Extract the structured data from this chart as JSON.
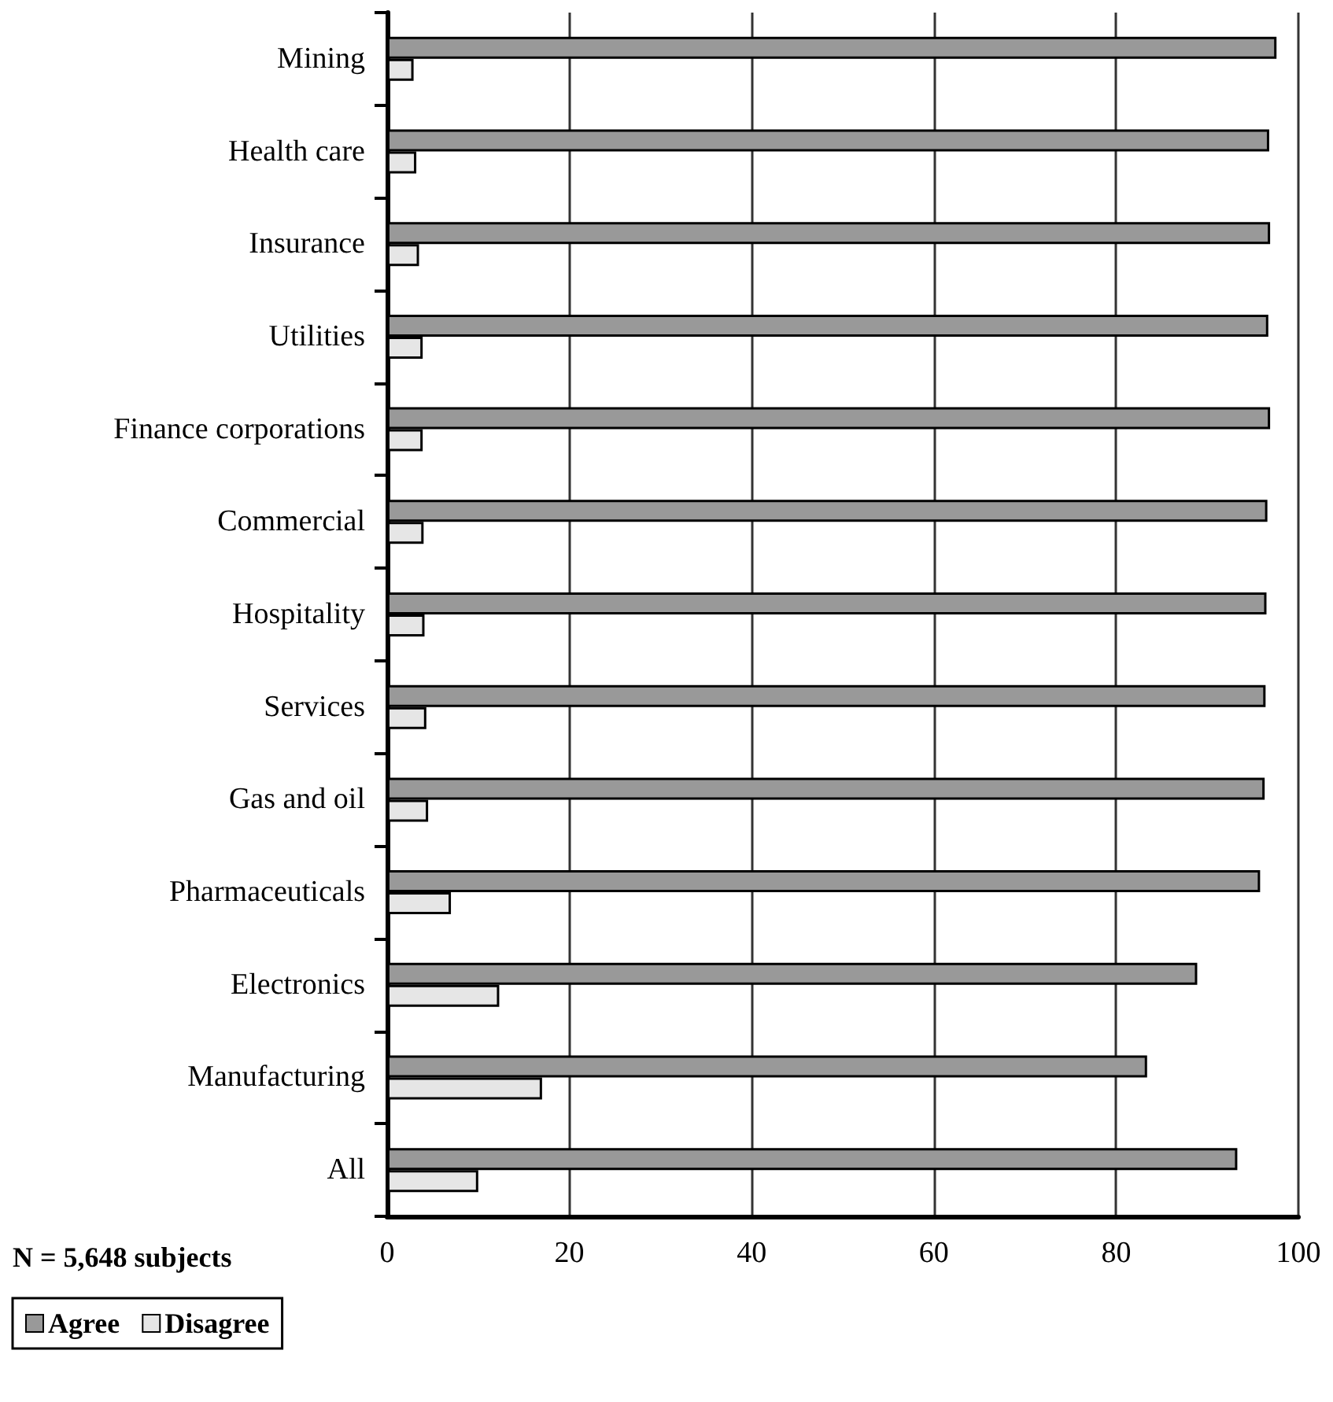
{
  "chart_data": {
    "type": "bar",
    "orientation": "horizontal",
    "categories": [
      "Mining",
      "Health care",
      "Insurance",
      "Utilities",
      "Finance corporations",
      "Commercial",
      "Hospitality",
      "Services",
      "Gas and oil",
      "Pharmaceuticals",
      "Electronics",
      "Manufacturing",
      "All"
    ],
    "series": [
      {
        "name": "Agree",
        "color": "#999999",
        "values": [
          97.6,
          96.8,
          96.9,
          96.7,
          96.9,
          96.6,
          96.5,
          96.4,
          96.3,
          95.8,
          88.9,
          83.4,
          93.3
        ]
      },
      {
        "name": "Disagree",
        "color": "#e6e6e6",
        "values": [
          2.9,
          3.2,
          3.5,
          3.9,
          3.9,
          4.0,
          4.1,
          4.3,
          4.5,
          7.0,
          12.3,
          17.0,
          10.0
        ]
      }
    ],
    "xlim": [
      0,
      100
    ],
    "xticks": [
      0,
      20,
      40,
      60,
      80,
      100
    ],
    "grid": "x",
    "legend": "bottom left",
    "annotations": [
      "N = 5,648 subjects"
    ]
  }
}
